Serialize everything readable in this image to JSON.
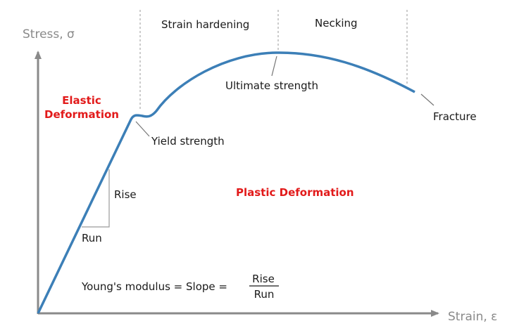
{
  "axes": {
    "y_label": "Stress, σ",
    "x_label": "Strain, ε"
  },
  "regions": {
    "strain_hardening": "Strain hardening",
    "necking": "Necking",
    "elastic_line1": "Elastic",
    "elastic_line2": "Deformation",
    "plastic": "Plastic Deformation"
  },
  "points": {
    "yield": "Yield strength",
    "ultimate": "Ultimate strength",
    "fracture": "Fracture"
  },
  "slope_triangle": {
    "rise": "Rise",
    "run": "Run"
  },
  "formula": {
    "lhs": "Young's modulus = Slope =",
    "numerator": "Rise",
    "denominator": "Run"
  },
  "colors": {
    "curve": "#3c7fb7",
    "axis": "#8a8a8a",
    "emphasis": "#e21a1a",
    "text": "#1a1a1a",
    "guide": "#9a9a9a"
  }
}
